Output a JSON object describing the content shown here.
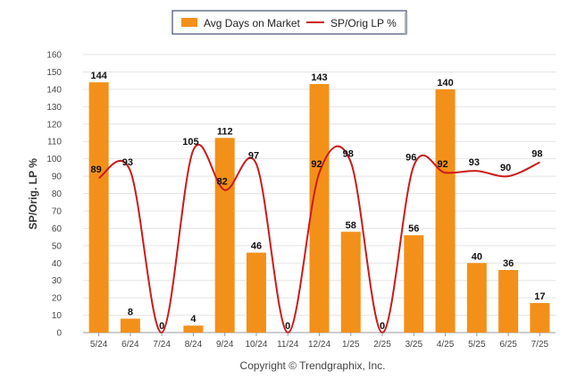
{
  "chart_data": {
    "type": "bar",
    "categories": [
      "5/24",
      "6/24",
      "7/24",
      "8/24",
      "9/24",
      "10/24",
      "11/24",
      "12/24",
      "1/25",
      "2/25",
      "3/25",
      "4/25",
      "5/25",
      "6/25",
      "7/25"
    ],
    "series": [
      {
        "name": "Avg Days on Market",
        "type": "bar",
        "color": "#f39019",
        "values": [
          144,
          8,
          0,
          4,
          112,
          46,
          0,
          143,
          58,
          0,
          56,
          140,
          40,
          36,
          17
        ]
      },
      {
        "name": "SP/Orig LP %",
        "type": "line",
        "color": "#cc1a1a",
        "values": [
          89,
          93,
          0,
          105,
          82,
          97,
          0,
          92,
          98,
          0,
          96,
          92,
          93,
          90,
          98
        ]
      }
    ],
    "ylabel": "SP/Orig. LP %",
    "ylim": [
      0,
      160
    ],
    "yticks": [
      0,
      10,
      20,
      30,
      40,
      50,
      60,
      70,
      80,
      90,
      100,
      110,
      120,
      130,
      140,
      150,
      160
    ],
    "grid": true,
    "legend_position": "top-center"
  },
  "legend": {
    "bar_label": "Avg Days on Market",
    "line_label": "SP/Orig LP %"
  },
  "footer": {
    "copyright": "Copyright © Trendgraphix, Inc."
  }
}
